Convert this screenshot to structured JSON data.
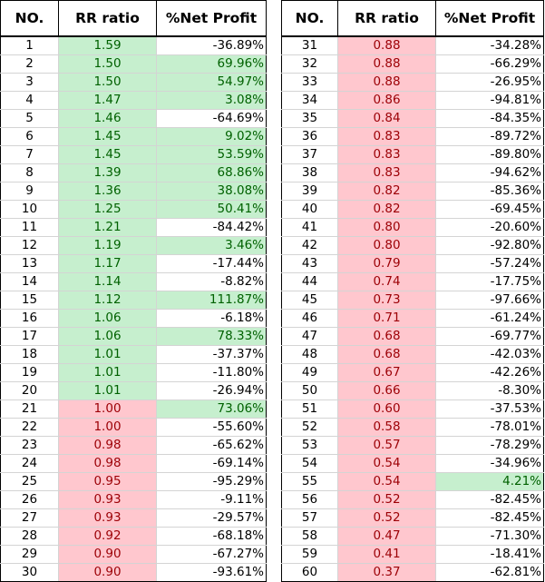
{
  "headers": {
    "no": "NO.",
    "rr": "RR ratio",
    "np": "%Net Profit"
  },
  "colors": {
    "green_fill": "#c6efce",
    "green_text": "#006100",
    "red_fill": "#ffc7ce",
    "red_text": "#9c0006"
  },
  "rows": [
    {
      "no": "1",
      "rr": "1.59",
      "np": "-36.89%",
      "rr_hl": "green",
      "np_hl": ""
    },
    {
      "no": "2",
      "rr": "1.50",
      "np": "69.96%",
      "rr_hl": "green",
      "np_hl": "green"
    },
    {
      "no": "3",
      "rr": "1.50",
      "np": "54.97%",
      "rr_hl": "green",
      "np_hl": "green"
    },
    {
      "no": "4",
      "rr": "1.47",
      "np": "3.08%",
      "rr_hl": "green",
      "np_hl": "green"
    },
    {
      "no": "5",
      "rr": "1.46",
      "np": "-64.69%",
      "rr_hl": "green",
      "np_hl": ""
    },
    {
      "no": "6",
      "rr": "1.45",
      "np": "9.02%",
      "rr_hl": "green",
      "np_hl": "green"
    },
    {
      "no": "7",
      "rr": "1.45",
      "np": "53.59%",
      "rr_hl": "green",
      "np_hl": "green"
    },
    {
      "no": "8",
      "rr": "1.39",
      "np": "68.86%",
      "rr_hl": "green",
      "np_hl": "green"
    },
    {
      "no": "9",
      "rr": "1.36",
      "np": "38.08%",
      "rr_hl": "green",
      "np_hl": "green"
    },
    {
      "no": "10",
      "rr": "1.25",
      "np": "50.41%",
      "rr_hl": "green",
      "np_hl": "green"
    },
    {
      "no": "11",
      "rr": "1.21",
      "np": "-84.42%",
      "rr_hl": "green",
      "np_hl": ""
    },
    {
      "no": "12",
      "rr": "1.19",
      "np": "3.46%",
      "rr_hl": "green",
      "np_hl": "green"
    },
    {
      "no": "13",
      "rr": "1.17",
      "np": "-17.44%",
      "rr_hl": "green",
      "np_hl": ""
    },
    {
      "no": "14",
      "rr": "1.14",
      "np": "-8.82%",
      "rr_hl": "green",
      "np_hl": ""
    },
    {
      "no": "15",
      "rr": "1.12",
      "np": "111.87%",
      "rr_hl": "green",
      "np_hl": "green"
    },
    {
      "no": "16",
      "rr": "1.06",
      "np": "-6.18%",
      "rr_hl": "green",
      "np_hl": ""
    },
    {
      "no": "17",
      "rr": "1.06",
      "np": "78.33%",
      "rr_hl": "green",
      "np_hl": "green"
    },
    {
      "no": "18",
      "rr": "1.01",
      "np": "-37.37%",
      "rr_hl": "green",
      "np_hl": ""
    },
    {
      "no": "19",
      "rr": "1.01",
      "np": "-11.80%",
      "rr_hl": "green",
      "np_hl": ""
    },
    {
      "no": "20",
      "rr": "1.01",
      "np": "-26.94%",
      "rr_hl": "green",
      "np_hl": ""
    },
    {
      "no": "21",
      "rr": "1.00",
      "np": "73.06%",
      "rr_hl": "red",
      "np_hl": "green"
    },
    {
      "no": "22",
      "rr": "1.00",
      "np": "-55.60%",
      "rr_hl": "red",
      "np_hl": ""
    },
    {
      "no": "23",
      "rr": "0.98",
      "np": "-65.62%",
      "rr_hl": "red",
      "np_hl": ""
    },
    {
      "no": "24",
      "rr": "0.98",
      "np": "-69.14%",
      "rr_hl": "red",
      "np_hl": ""
    },
    {
      "no": "25",
      "rr": "0.95",
      "np": "-95.29%",
      "rr_hl": "red",
      "np_hl": ""
    },
    {
      "no": "26",
      "rr": "0.93",
      "np": "-9.11%",
      "rr_hl": "red",
      "np_hl": ""
    },
    {
      "no": "27",
      "rr": "0.93",
      "np": "-29.57%",
      "rr_hl": "red",
      "np_hl": ""
    },
    {
      "no": "28",
      "rr": "0.92",
      "np": "-68.18%",
      "rr_hl": "red",
      "np_hl": ""
    },
    {
      "no": "29",
      "rr": "0.90",
      "np": "-67.27%",
      "rr_hl": "red",
      "np_hl": ""
    },
    {
      "no": "30",
      "rr": "0.90",
      "np": "-93.61%",
      "rr_hl": "red",
      "np_hl": ""
    },
    {
      "no": "31",
      "rr": "0.88",
      "np": "-34.28%",
      "rr_hl": "red",
      "np_hl": ""
    },
    {
      "no": "32",
      "rr": "0.88",
      "np": "-66.29%",
      "rr_hl": "red",
      "np_hl": ""
    },
    {
      "no": "33",
      "rr": "0.88",
      "np": "-26.95%",
      "rr_hl": "red",
      "np_hl": ""
    },
    {
      "no": "34",
      "rr": "0.86",
      "np": "-94.81%",
      "rr_hl": "red",
      "np_hl": ""
    },
    {
      "no": "35",
      "rr": "0.84",
      "np": "-84.35%",
      "rr_hl": "red",
      "np_hl": ""
    },
    {
      "no": "36",
      "rr": "0.83",
      "np": "-89.72%",
      "rr_hl": "red",
      "np_hl": ""
    },
    {
      "no": "37",
      "rr": "0.83",
      "np": "-89.80%",
      "rr_hl": "red",
      "np_hl": ""
    },
    {
      "no": "38",
      "rr": "0.83",
      "np": "-94.62%",
      "rr_hl": "red",
      "np_hl": ""
    },
    {
      "no": "39",
      "rr": "0.82",
      "np": "-85.36%",
      "rr_hl": "red",
      "np_hl": ""
    },
    {
      "no": "40",
      "rr": "0.82",
      "np": "-69.45%",
      "rr_hl": "red",
      "np_hl": ""
    },
    {
      "no": "41",
      "rr": "0.80",
      "np": "-20.60%",
      "rr_hl": "red",
      "np_hl": ""
    },
    {
      "no": "42",
      "rr": "0.80",
      "np": "-92.80%",
      "rr_hl": "red",
      "np_hl": ""
    },
    {
      "no": "43",
      "rr": "0.79",
      "np": "-57.24%",
      "rr_hl": "red",
      "np_hl": ""
    },
    {
      "no": "44",
      "rr": "0.74",
      "np": "-17.75%",
      "rr_hl": "red",
      "np_hl": ""
    },
    {
      "no": "45",
      "rr": "0.73",
      "np": "-97.66%",
      "rr_hl": "red",
      "np_hl": ""
    },
    {
      "no": "46",
      "rr": "0.71",
      "np": "-61.24%",
      "rr_hl": "red",
      "np_hl": ""
    },
    {
      "no": "47",
      "rr": "0.68",
      "np": "-69.77%",
      "rr_hl": "red",
      "np_hl": ""
    },
    {
      "no": "48",
      "rr": "0.68",
      "np": "-42.03%",
      "rr_hl": "red",
      "np_hl": ""
    },
    {
      "no": "49",
      "rr": "0.67",
      "np": "-42.26%",
      "rr_hl": "red",
      "np_hl": ""
    },
    {
      "no": "50",
      "rr": "0.66",
      "np": "-8.30%",
      "rr_hl": "red",
      "np_hl": ""
    },
    {
      "no": "51",
      "rr": "0.60",
      "np": "-37.53%",
      "rr_hl": "red",
      "np_hl": ""
    },
    {
      "no": "52",
      "rr": "0.58",
      "np": "-78.01%",
      "rr_hl": "red",
      "np_hl": ""
    },
    {
      "no": "53",
      "rr": "0.57",
      "np": "-78.29%",
      "rr_hl": "red",
      "np_hl": ""
    },
    {
      "no": "54",
      "rr": "0.54",
      "np": "-34.96%",
      "rr_hl": "red",
      "np_hl": ""
    },
    {
      "no": "55",
      "rr": "0.54",
      "np": "4.21%",
      "rr_hl": "red",
      "np_hl": "green"
    },
    {
      "no": "56",
      "rr": "0.52",
      "np": "-82.45%",
      "rr_hl": "red",
      "np_hl": ""
    },
    {
      "no": "57",
      "rr": "0.52",
      "np": "-82.45%",
      "rr_hl": "red",
      "np_hl": ""
    },
    {
      "no": "58",
      "rr": "0.47",
      "np": "-71.30%",
      "rr_hl": "red",
      "np_hl": ""
    },
    {
      "no": "59",
      "rr": "0.41",
      "np": "-18.41%",
      "rr_hl": "red",
      "np_hl": ""
    },
    {
      "no": "60",
      "rr": "0.37",
      "np": "-62.81%",
      "rr_hl": "red",
      "np_hl": ""
    }
  ]
}
